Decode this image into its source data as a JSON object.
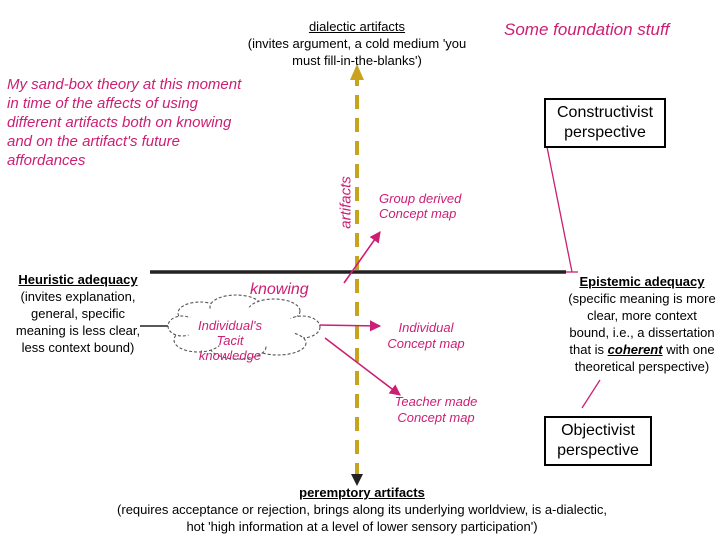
{
  "diagram": {
    "top_axis": {
      "title": "dialectic artifacts",
      "desc": "(invites argument, a cold medium 'you must fill-in-the-blanks')"
    },
    "foundation": "Some foundation stuff",
    "sandbox_note": "My sand-box theory at this moment in time of the affects of using different artifacts both on knowing and on the artifact's future affordances",
    "constructivist": "Constructivist perspective",
    "vertical_axis_label": "artifacts",
    "horizontal_axis_label": "knowing",
    "group_map": "Group derived Concept map",
    "heuristic": {
      "title": "Heuristic adequacy",
      "desc": "(invites explanation, general, specific meaning is less clear, less context bound)"
    },
    "tacit": "Individual's Tacit knowledge",
    "individual_map": "Individual Concept map",
    "epistemic": {
      "title": "Epistemic adequacy",
      "desc_before": "(specific meaning is more clear, more context bound, i.e., a dissertation that is ",
      "desc_emph": "coherent",
      "desc_after": " with one theoretical perspective)"
    },
    "teacher_map": "Teacher made Concept map",
    "objectivist": "Objectivist perspective",
    "bottom_axis": {
      "title": "peremptory artifacts",
      "desc": "(requires acceptance or rejection, brings along its underlying worldview, is a-dialectic, hot 'high information at a level of lower sensory participation')"
    }
  },
  "colors": {
    "vertical_axis": "#c8a41e",
    "arrows": "#cc1f74",
    "text_accent": "#cc1f74"
  }
}
